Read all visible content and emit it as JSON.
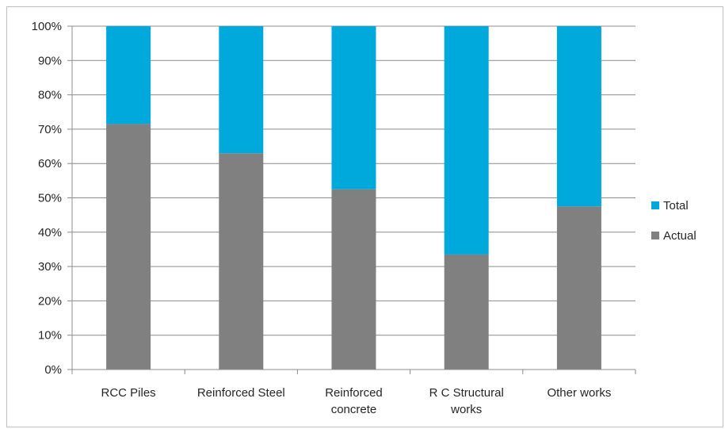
{
  "chart_data": {
    "type": "bar",
    "stacked": true,
    "percent": true,
    "categories": [
      [
        "RCC Piles"
      ],
      [
        "Reinforced Steel"
      ],
      [
        "Reinforced",
        "concrete"
      ],
      [
        "R C Structural",
        "works"
      ],
      [
        "Other works"
      ]
    ],
    "series": [
      {
        "name": "Actual",
        "color": "#808080",
        "values": [
          71.5,
          63,
          52.5,
          33.5,
          47.5
        ]
      },
      {
        "name": "Total",
        "color": "#00a9dc",
        "values": [
          28.5,
          37,
          47.5,
          66.5,
          52.5
        ]
      }
    ],
    "yticks": [
      "0%",
      "10%",
      "20%",
      "30%",
      "40%",
      "50%",
      "60%",
      "70%",
      "80%",
      "90%",
      "100%"
    ],
    "ylim": [
      0,
      100
    ],
    "grid": true,
    "legend": {
      "position": "right",
      "order": [
        "Total",
        "Actual"
      ]
    },
    "title": "",
    "xlabel": "",
    "ylabel": ""
  }
}
